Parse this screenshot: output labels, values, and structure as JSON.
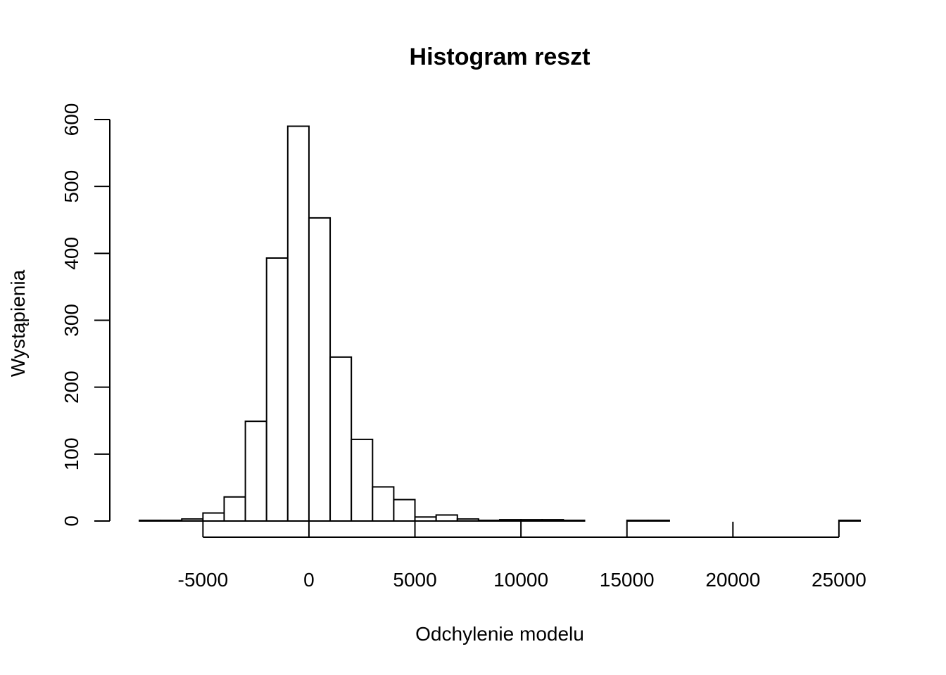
{
  "chart_data": {
    "type": "bar",
    "title": "Histogram reszt",
    "xlabel": "Odchylenie modelu",
    "ylabel": "Wystąpienia",
    "xlim": [
      -8000,
      26000
    ],
    "ylim": [
      0,
      600
    ],
    "x_ticks": [
      -5000,
      0,
      5000,
      10000,
      15000,
      20000,
      25000
    ],
    "x_tick_labels": [
      "-5000",
      "0",
      "5000",
      "10000",
      "15000",
      "20000",
      "25000"
    ],
    "y_ticks": [
      0,
      100,
      200,
      300,
      400,
      500,
      600
    ],
    "y_tick_labels": [
      "0",
      "100",
      "200",
      "300",
      "400",
      "500",
      "600"
    ],
    "bin_width": 1000,
    "bins": [
      {
        "start": -8000,
        "end": -7000,
        "count": 1
      },
      {
        "start": -7000,
        "end": -6000,
        "count": 1
      },
      {
        "start": -6000,
        "end": -5000,
        "count": 3
      },
      {
        "start": -5000,
        "end": -4000,
        "count": 12
      },
      {
        "start": -4000,
        "end": -3000,
        "count": 36
      },
      {
        "start": -3000,
        "end": -2000,
        "count": 149
      },
      {
        "start": -2000,
        "end": -1000,
        "count": 393
      },
      {
        "start": -1000,
        "end": 0,
        "count": 590
      },
      {
        "start": 0,
        "end": 1000,
        "count": 453
      },
      {
        "start": 1000,
        "end": 2000,
        "count": 245
      },
      {
        "start": 2000,
        "end": 3000,
        "count": 122
      },
      {
        "start": 3000,
        "end": 4000,
        "count": 51
      },
      {
        "start": 4000,
        "end": 5000,
        "count": 32
      },
      {
        "start": 5000,
        "end": 6000,
        "count": 6
      },
      {
        "start": 6000,
        "end": 7000,
        "count": 9
      },
      {
        "start": 7000,
        "end": 8000,
        "count": 3
      },
      {
        "start": 8000,
        "end": 9000,
        "count": 1
      },
      {
        "start": 9000,
        "end": 10000,
        "count": 2
      },
      {
        "start": 10000,
        "end": 11000,
        "count": 2
      },
      {
        "start": 11000,
        "end": 12000,
        "count": 2
      },
      {
        "start": 12000,
        "end": 13000,
        "count": 1
      },
      {
        "start": 13000,
        "end": 14000,
        "count": 0
      },
      {
        "start": 14000,
        "end": 15000,
        "count": 0
      },
      {
        "start": 15000,
        "end": 16000,
        "count": 1
      },
      {
        "start": 16000,
        "end": 17000,
        "count": 1
      },
      {
        "start": 17000,
        "end": 18000,
        "count": 0
      },
      {
        "start": 18000,
        "end": 19000,
        "count": 0
      },
      {
        "start": 19000,
        "end": 20000,
        "count": 0
      },
      {
        "start": 20000,
        "end": 21000,
        "count": 0
      },
      {
        "start": 21000,
        "end": 22000,
        "count": 0
      },
      {
        "start": 22000,
        "end": 23000,
        "count": 0
      },
      {
        "start": 23000,
        "end": 24000,
        "count": 0
      },
      {
        "start": 24000,
        "end": 25000,
        "count": 0
      },
      {
        "start": 25000,
        "end": 26000,
        "count": 1
      }
    ]
  }
}
